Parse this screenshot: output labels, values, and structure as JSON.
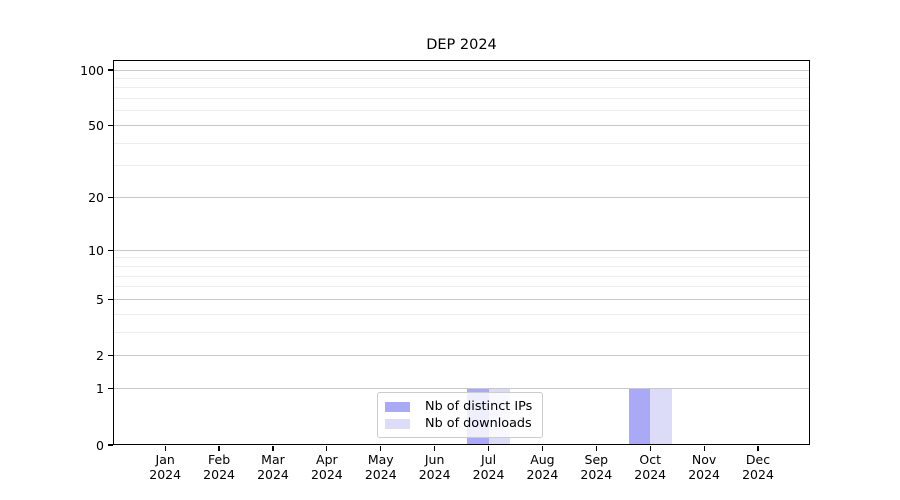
{
  "title": "DEP 2024",
  "legend": {
    "items": [
      {
        "label": "Nb of distinct IPs",
        "color": "#a9a9f6"
      },
      {
        "label": "Nb of downloads",
        "color": "#dcdcf8"
      }
    ]
  },
  "axes": {
    "x_tick_months": [
      "Jan",
      "Feb",
      "Mar",
      "Apr",
      "May",
      "Jun",
      "Jul",
      "Aug",
      "Sep",
      "Oct",
      "Nov",
      "Dec"
    ],
    "x_tick_year": "2024",
    "y_tick_labels": [
      "0",
      "1",
      "2",
      "5",
      "10",
      "20",
      "50",
      "100"
    ]
  },
  "colors": {
    "major_grid": "#c8c8c8",
    "minor_grid": "#ededed",
    "axis": "#000000",
    "background": "#ffffff"
  },
  "chart_data": {
    "type": "bar",
    "title": "DEP 2024",
    "categories": [
      "Jan 2024",
      "Feb 2024",
      "Mar 2024",
      "Apr 2024",
      "May 2024",
      "Jun 2024",
      "Jul 2024",
      "Aug 2024",
      "Sep 2024",
      "Oct 2024",
      "Nov 2024",
      "Dec 2024"
    ],
    "series": [
      {
        "name": "Nb of distinct IPs",
        "color": "#a9a9f6",
        "values": [
          0,
          0,
          0,
          0,
          0,
          0,
          1,
          0,
          0,
          1,
          0,
          0
        ]
      },
      {
        "name": "Nb of downloads",
        "color": "#dcdcf8",
        "values": [
          0,
          0,
          0,
          0,
          0,
          0,
          1,
          0,
          0,
          1,
          0,
          0
        ]
      }
    ],
    "bar_layout": "grouped side-by-side, width 0.4 of category band",
    "y_scale": "log1p",
    "y_major_ticks": [
      0,
      1,
      2,
      5,
      10,
      20,
      50,
      100
    ],
    "y_minor_gridlines": [
      3,
      4,
      6,
      7,
      8,
      9,
      30,
      40,
      60,
      70,
      80,
      90
    ],
    "ylim": [
      0,
      113
    ],
    "xlabel": "",
    "ylabel": "",
    "grid": "both-horizontal",
    "legend_position": "lower center (inside axes, overlapping Jul bars)"
  }
}
